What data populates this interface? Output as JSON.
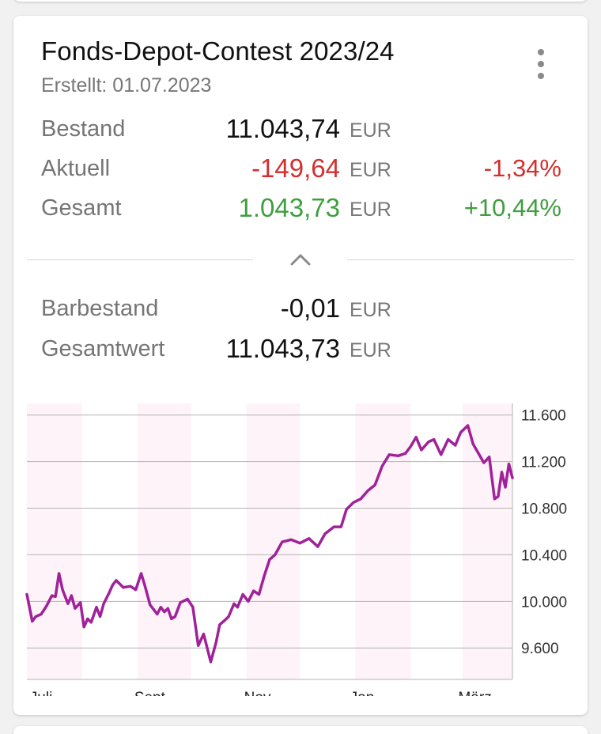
{
  "card": {
    "title": "Fonds-Depot-Contest 2023/24",
    "created": "Erstellt: 01.07.2023",
    "menu_icon": "more-vert-icon",
    "rows": [
      {
        "label": "Bestand",
        "value": "11.043,74",
        "currency": "EUR",
        "percent": ""
      },
      {
        "label": "Aktuell",
        "value": "-149,64",
        "currency": "EUR",
        "percent": "-1,34%"
      },
      {
        "label": "Gesamt",
        "value": "1.043,73",
        "currency": "EUR",
        "percent": "+10,44%"
      }
    ],
    "collapse_icon": "chevron-up-icon",
    "cash_rows": [
      {
        "label": "Barbestand",
        "value": "-0,01",
        "currency": "EUR"
      },
      {
        "label": "Gesamtwert",
        "value": "11.043,73",
        "currency": "EUR"
      }
    ]
  },
  "colors": {
    "negative": "#d32f2f",
    "positive": "#3f9e3f",
    "line": "#a0229a",
    "band": "#fdf3f9"
  },
  "chart_data": {
    "type": "line",
    "title": "",
    "xlabel": "",
    "ylabel": "",
    "x_tick_labels": [
      "Juli",
      "Sept.",
      "Nov.",
      "Jan.",
      "März"
    ],
    "y_tick_labels": [
      "11.600",
      "11.200",
      "10.800",
      "10.400",
      "10.000",
      "9.600"
    ],
    "y_ticks": [
      11600,
      11200,
      10800,
      10400,
      10000,
      9600
    ],
    "ylim": [
      9330,
      11700
    ],
    "xlim": [
      "2023-07-01",
      "2024-03-29"
    ],
    "grid": true,
    "shaded_months": [
      "2023-07",
      "2023-09",
      "2023-11",
      "2024-01",
      "2024-03"
    ],
    "series": [
      {
        "x": [
          "2023-07-01",
          "2023-07-04",
          "2023-07-06",
          "2023-07-09",
          "2023-07-12",
          "2023-07-15",
          "2023-07-17",
          "2023-07-19",
          "2023-07-21",
          "2023-07-24",
          "2023-07-26",
          "2023-07-28",
          "2023-07-31",
          "2023-08-02",
          "2023-08-04",
          "2023-08-06",
          "2023-08-09",
          "2023-08-11",
          "2023-08-13",
          "2023-08-16",
          "2023-08-18",
          "2023-08-20",
          "2023-08-24",
          "2023-08-28",
          "2023-08-31",
          "2023-09-03",
          "2023-09-05",
          "2023-09-08",
          "2023-09-10",
          "2023-09-12",
          "2023-09-14",
          "2023-09-16",
          "2023-09-18",
          "2023-09-20",
          "2023-09-22",
          "2023-09-25",
          "2023-09-29",
          "2023-10-02",
          "2023-10-05",
          "2023-10-08",
          "2023-10-12",
          "2023-10-15",
          "2023-10-17",
          "2023-10-20",
          "2023-10-22",
          "2023-10-25",
          "2023-10-27",
          "2023-10-30",
          "2023-11-02",
          "2023-11-05",
          "2023-11-08",
          "2023-11-11",
          "2023-11-14",
          "2023-11-17",
          "2023-11-21",
          "2023-11-26",
          "2023-12-01",
          "2023-12-06",
          "2023-12-11",
          "2023-12-15",
          "2023-12-20",
          "2023-12-24",
          "2023-12-27",
          "2023-12-31",
          "2024-01-04",
          "2024-01-08",
          "2024-01-12",
          "2024-01-16",
          "2024-01-20",
          "2024-01-25",
          "2024-01-29",
          "2024-02-01",
          "2024-02-04",
          "2024-02-07",
          "2024-02-11",
          "2024-02-14",
          "2024-02-18",
          "2024-02-22",
          "2024-02-26",
          "2024-02-29",
          "2024-03-04",
          "2024-03-07",
          "2024-03-10",
          "2024-03-13",
          "2024-03-16",
          "2024-03-19",
          "2024-03-21",
          "2024-03-23",
          "2024-03-25",
          "2024-03-27",
          "2024-03-29"
        ],
        "y": [
          10060,
          9830,
          9870,
          9890,
          9960,
          10050,
          10040,
          10240,
          10100,
          9980,
          10050,
          9940,
          9990,
          9780,
          9850,
          9820,
          9950,
          9870,
          9980,
          10070,
          10140,
          10180,
          10120,
          10130,
          10100,
          10240,
          10140,
          9970,
          9930,
          9890,
          9950,
          9910,
          9940,
          9850,
          9870,
          9990,
          10020,
          9950,
          9620,
          9720,
          9480,
          9650,
          9800,
          9840,
          9870,
          9980,
          9950,
          10060,
          10000,
          10090,
          10060,
          10220,
          10360,
          10400,
          10510,
          10530,
          10500,
          10540,
          10470,
          10580,
          10640,
          10640,
          10790,
          10850,
          10880,
          10950,
          11000,
          11160,
          11260,
          11250,
          11270,
          11330,
          11410,
          11300,
          11370,
          11390,
          11260,
          11390,
          11340,
          11450,
          11510,
          11350,
          11270,
          11190,
          11240,
          10880,
          10900,
          11110,
          10980,
          11180,
          11060
        ]
      }
    ]
  }
}
